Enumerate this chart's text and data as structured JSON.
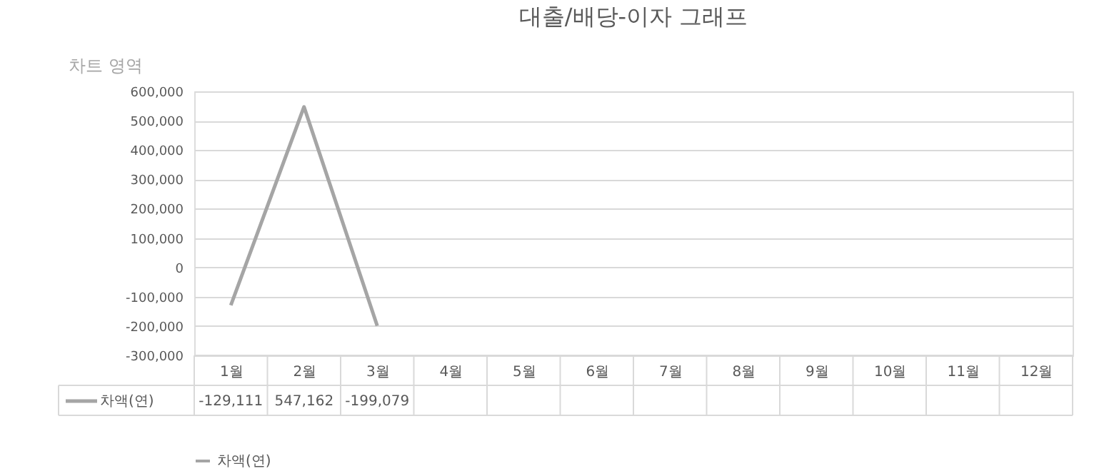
{
  "chart_data": {
    "type": "line",
    "title": "대출/배당-이자 그래프",
    "categories": [
      "1월",
      "2월",
      "3월",
      "4월",
      "5월",
      "6월",
      "7월",
      "8월",
      "9월",
      "10월",
      "11월",
      "12월"
    ],
    "series": [
      {
        "name": "차액(연)",
        "color": "#a5a5a5",
        "values": [
          -129111,
          547162,
          -199079,
          null,
          null,
          null,
          null,
          null,
          null,
          null,
          null,
          null
        ],
        "value_labels": [
          "-129,111",
          "547,162",
          "-199,079",
          null,
          null,
          null,
          null,
          null,
          null,
          null,
          null,
          null
        ]
      }
    ],
    "ylim": [
      -300000,
      600000
    ],
    "yticks": [
      {
        "value": -300000,
        "label": "-300,000"
      },
      {
        "value": -200000,
        "label": "-200,000"
      },
      {
        "value": -100000,
        "label": "-100,000"
      },
      0,
      {
        "value": 100000,
        "label": "100,000"
      },
      {
        "value": 200000,
        "label": "200,000"
      },
      {
        "value": 300000,
        "label": "300,000"
      },
      {
        "value": 400000,
        "label": "400,000"
      },
      {
        "value": 500000,
        "label": "500,000"
      },
      {
        "value": 600000,
        "label": "600,000"
      }
    ],
    "grid": "y",
    "legend": "bottom",
    "marker": "none",
    "line_style": "solid",
    "annotations": [
      "차트 영역"
    ]
  }
}
